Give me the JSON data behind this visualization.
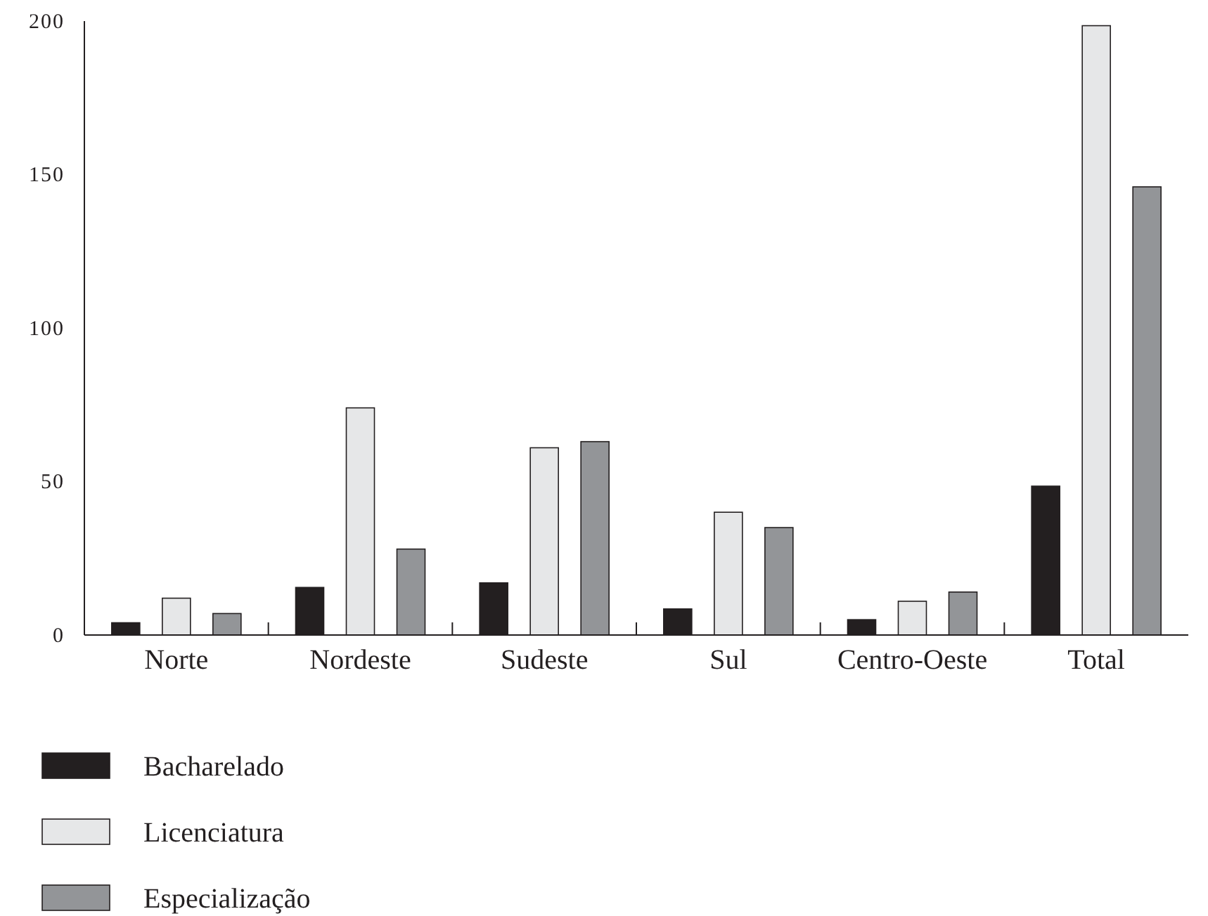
{
  "chart_data": {
    "type": "bar",
    "categories": [
      "Norte",
      "Nordeste",
      "Sudeste",
      "Sul",
      "Centro-Oeste",
      "Total"
    ],
    "series": [
      {
        "name": "Bacharelado",
        "color": "#231f20",
        "values": [
          4,
          15.5,
          17,
          8.5,
          5,
          48.5
        ]
      },
      {
        "name": "Licenciatura",
        "color": "#e6e7e8",
        "values": [
          12,
          74,
          61,
          40,
          11,
          198.5
        ]
      },
      {
        "name": "Especialização",
        "color": "#939598",
        "values": [
          7,
          28,
          63,
          35,
          14,
          146
        ]
      }
    ],
    "ylim": [
      0,
      200
    ],
    "yticks": [
      0,
      50,
      100,
      150,
      200
    ],
    "grid": false,
    "legend": "bottom"
  }
}
